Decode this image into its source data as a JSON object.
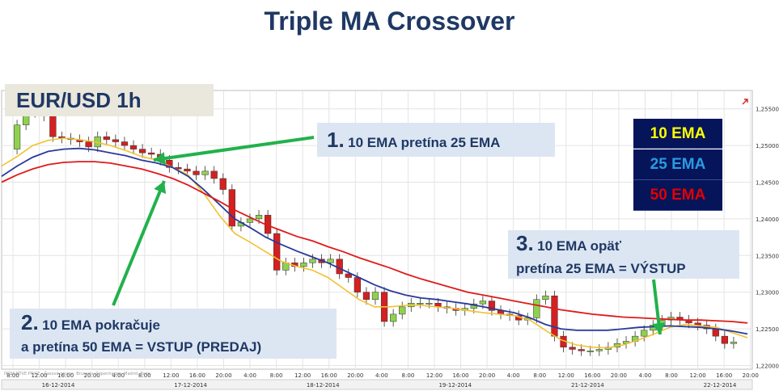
{
  "title": "Triple MA Crossover",
  "pair_label": "EUR/USD 1h",
  "callouts": {
    "c1": {
      "num": "1.",
      "text": "10 EMA pretína 25 EMA"
    },
    "c2": {
      "num": "2.",
      "line1": "10 EMA pokračuje",
      "line2": "a pretína 50 EMA = VSTUP (PREDAJ)"
    },
    "c3": {
      "num": "3.",
      "line1": "10 EMA opäť",
      "line2": "pretína 25 EMA = VÝSTUP"
    }
  },
  "legend": [
    {
      "label": "10 EMA",
      "color": "#ffff00"
    },
    {
      "label": "25 EMA",
      "color": "#2b9be0"
    },
    {
      "label": "50 EMA",
      "color": "#e20000"
    }
  ],
  "colors": {
    "ema10": "#f2c230",
    "ema25": "#2a3a9a",
    "ema50": "#e01a1a",
    "bull": "#8fd14f",
    "bear": "#d42020",
    "arrow": "#22b14c",
    "grid": "#e4e4e4"
  },
  "chart_data": {
    "type": "candlestick",
    "title": "EUR/USD 1h",
    "ylim": [
      1.2195,
      1.2575
    ],
    "y_ticks": [
      "1,25500",
      "1,25000",
      "1,24500",
      "1,24000",
      "1,23500",
      "1,23000",
      "1,22500",
      "1,22000"
    ],
    "y_tick_values": [
      1.255,
      1.25,
      1.245,
      1.24,
      1.235,
      1.23,
      1.225,
      1.22
    ],
    "x_time_labels": [
      "8:00",
      "12:00",
      "16:00",
      "20:00",
      "4:00",
      "8:00",
      "12:00",
      "16:00",
      "20:00",
      "4:00",
      "8:00",
      "12:00",
      "16:00",
      "20:00",
      "4:00",
      "8:00",
      "12:00",
      "16:00",
      "20:00",
      "4:00",
      "8:00",
      "12:00",
      "16:00",
      "20:00",
      "4:00",
      "8:00",
      "12:00",
      "16:00",
      "20:00"
    ],
    "x_date_labels": [
      "16-12-2014",
      "17-12-2014",
      "18-12-2014",
      "19-12-2014",
      "21-12-2014",
      "22-12-2014"
    ],
    "footer_note": "INDICATIVE PRICE - Časová pásma: Brussels, Copenhagen, Madrid, Paris",
    "candles_close": [
      1.2495,
      1.2528,
      1.2545,
      1.2552,
      1.254,
      1.2512,
      1.251,
      1.2508,
      1.2505,
      1.2498,
      1.2512,
      1.2508,
      1.2505,
      1.25,
      1.2495,
      1.249,
      1.2488,
      1.248,
      1.247,
      1.2468,
      1.2465,
      1.246,
      1.2465,
      1.2455,
      1.244,
      1.239,
      1.2395,
      1.24,
      1.2405,
      1.238,
      1.233,
      1.234,
      1.2335,
      1.234,
      1.2345,
      1.234,
      1.2345,
      1.2325,
      1.232,
      1.23,
      1.229,
      1.23,
      1.226,
      1.227,
      1.228,
      1.2285,
      1.2285,
      1.2285,
      1.228,
      1.2278,
      1.2275,
      1.2278,
      1.2284,
      1.2288,
      1.2275,
      1.227,
      1.2268,
      1.2262,
      1.2265,
      1.229,
      1.2295,
      1.224,
      1.2225,
      1.2222,
      1.222,
      1.222,
      1.2222,
      1.2225,
      1.223,
      1.2233,
      1.224,
      1.2248,
      1.2255,
      1.2262,
      1.2266,
      1.2262,
      1.2258,
      1.2255,
      1.225,
      1.224,
      1.223,
      1.2232
    ],
    "series": [
      {
        "name": "10 EMA",
        "values": [
          1.2472,
          1.2485,
          1.25,
          1.2507,
          1.251,
          1.2508,
          1.2505,
          1.25,
          1.2493,
          1.2485,
          1.248,
          1.247,
          1.246,
          1.2435,
          1.2405,
          1.238,
          1.2368,
          1.2355,
          1.2342,
          1.2335,
          1.233,
          1.232,
          1.2305,
          1.229,
          1.228,
          1.228,
          1.2282,
          1.2282,
          1.228,
          1.2278,
          1.2275,
          1.2272,
          1.227,
          1.2268,
          1.2262,
          1.2248,
          1.2235,
          1.2228,
          1.2225,
          1.2224,
          1.2228,
          1.2235,
          1.2243,
          1.2252,
          1.2256,
          1.2254,
          1.2252,
          1.2245,
          1.2238
        ]
      },
      {
        "name": "25 EMA",
        "values": [
          1.2458,
          1.2472,
          1.2484,
          1.2492,
          1.2495,
          1.2496,
          1.2494,
          1.249,
          1.2486,
          1.248,
          1.2476,
          1.247,
          1.2458,
          1.244,
          1.242,
          1.24,
          1.2388,
          1.2375,
          1.2365,
          1.2356,
          1.2348,
          1.234,
          1.233,
          1.232,
          1.231,
          1.2302,
          1.2296,
          1.2292,
          1.229,
          1.2287,
          1.2284,
          1.228,
          1.2276,
          1.2272,
          1.2265,
          1.2256,
          1.225,
          1.2248,
          1.2248,
          1.2248,
          1.225,
          1.2252,
          1.2253,
          1.2254,
          1.2253,
          1.2252,
          1.225,
          1.2247,
          1.2243
        ]
      },
      {
        "name": "50 EMA",
        "values": [
          1.245,
          1.246,
          1.2468,
          1.2474,
          1.2477,
          1.2478,
          1.2478,
          1.2476,
          1.2472,
          1.2468,
          1.2462,
          1.2455,
          1.2446,
          1.2435,
          1.2424,
          1.2412,
          1.2402,
          1.2392,
          1.2384,
          1.2376,
          1.237,
          1.2362,
          1.2355,
          1.2347,
          1.234,
          1.2333,
          1.2325,
          1.2318,
          1.2312,
          1.2306,
          1.23,
          1.2296,
          1.2292,
          1.2288,
          1.2284,
          1.228,
          1.2276,
          1.2273,
          1.227,
          1.2268,
          1.2266,
          1.2265,
          1.2264,
          1.2263,
          1.2262,
          1.2262,
          1.2261,
          1.226,
          1.2258
        ]
      }
    ]
  }
}
